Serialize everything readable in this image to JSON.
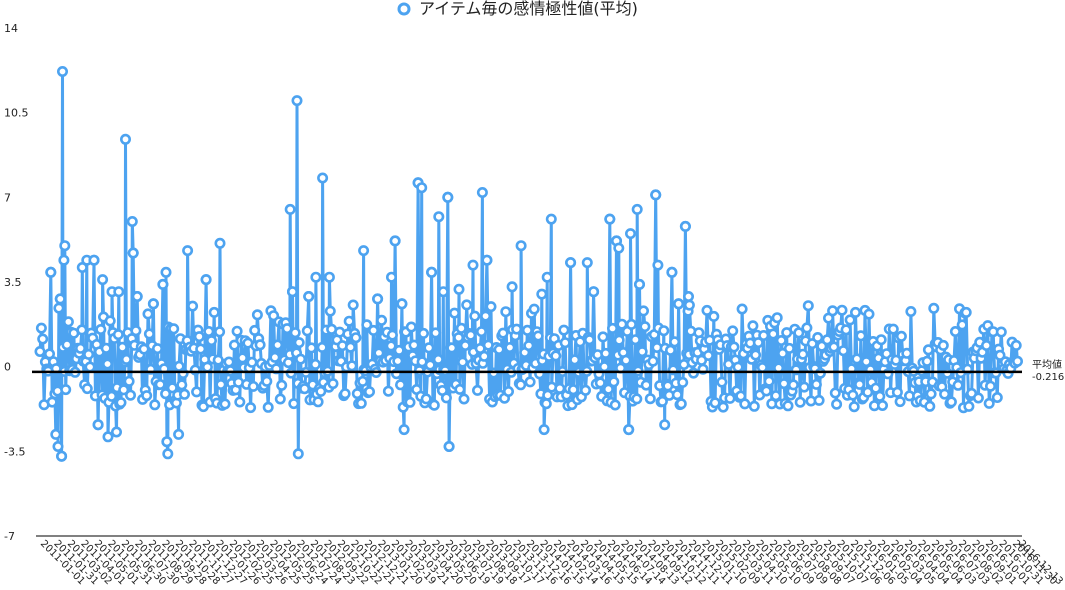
{
  "chart_data": {
    "type": "line",
    "title": "アイテム毎の感情極性値(平均)",
    "colors": {
      "series": "#4da3f0",
      "mean": "#000000",
      "axis": "#000000"
    },
    "ylim": [
      -7,
      14
    ],
    "yticks": [
      -7,
      -3.5,
      0,
      3.5,
      7,
      10.5,
      14
    ],
    "ytick_labels": [
      "-7",
      "-3.5",
      "0",
      "3.5",
      "7",
      "10.5",
      "14"
    ],
    "x_tick_labels": [
      "2011-01-01",
      "2011-01-31",
      "2011-03-02",
      "2011-04-01",
      "2011-05-01",
      "2011-05-31",
      "2011-06-30",
      "2011-07-30",
      "2011-08-29",
      "2011-09-28",
      "2011-10-28",
      "2011-11-27",
      "2011-12-27",
      "2012-01-26",
      "2012-02-25",
      "2012-03-26",
      "2012-04-25",
      "2012-05-25",
      "2012-06-24",
      "2012-07-24",
      "2012-08-23",
      "2012-09-22",
      "2012-10-22",
      "2012-11-21",
      "2012-12-21",
      "2013-01-20",
      "2013-02-19",
      "2013-03-21",
      "2013-04-20",
      "2013-05-20",
      "2013-06-19",
      "2013-07-19",
      "2013-08-18",
      "2013-09-17",
      "2013-10-17",
      "2013-11-16",
      "2013-12-16",
      "2014-01-15",
      "2014-02-14",
      "2014-03-16",
      "2014-04-15",
      "2014-05-15",
      "2014-06-14",
      "2014-07-14",
      "2014-08-13",
      "2014-09-12",
      "2014-10-12",
      "2014-11-11",
      "2014-12-11",
      "2015-01-10",
      "2015-02-09",
      "2015-03-11",
      "2015-04-10",
      "2015-05-10",
      "2015-06-09",
      "2015-07-09",
      "2015-08-08",
      "2015-09-07",
      "2015-10-07",
      "2015-11-06",
      "2015-12-06",
      "2016-01-05",
      "2016-02-04",
      "2016-03-05",
      "2016-04-04",
      "2016-05-04",
      "2016-06-03",
      "2016-07-03",
      "2016-08-02",
      "2016-09-01",
      "2016-10-01",
      "2016-10-31",
      "2016-11-30",
      "2016-12-13"
    ],
    "mean": {
      "value": -0.216,
      "label": "平均値",
      "value_label": "-0.216"
    },
    "series": [
      {
        "name": "アイテム毎の感情極性値(平均)",
        "peaks": [
          {
            "x": "2011-01-25",
            "y": 3.9
          },
          {
            "x": "2011-02-20",
            "y": 12.2
          },
          {
            "x": "2011-02-23",
            "y": 4.4
          },
          {
            "x": "2011-02-25",
            "y": 5.0
          },
          {
            "x": "2011-02-15",
            "y": 2.8
          },
          {
            "x": "2011-02-18",
            "y": 3.7
          },
          {
            "x": "2011-04-05",
            "y": 4.1
          },
          {
            "x": "2011-04-15",
            "y": 4.4
          },
          {
            "x": "2011-05-01",
            "y": 4.4
          },
          {
            "x": "2011-05-20",
            "y": 3.6
          },
          {
            "x": "2011-06-10",
            "y": 3.1
          },
          {
            "x": "2011-06-25",
            "y": 3.1
          },
          {
            "x": "2011-07-10",
            "y": 9.4
          },
          {
            "x": "2011-07-25",
            "y": 6.0
          },
          {
            "x": "2011-07-27",
            "y": 4.7
          },
          {
            "x": "2011-08-05",
            "y": 2.9
          },
          {
            "x": "2011-09-10",
            "y": 2.6
          },
          {
            "x": "2011-10-01",
            "y": 3.4
          },
          {
            "x": "2011-10-08",
            "y": 3.9
          },
          {
            "x": "2011-11-25",
            "y": 4.8
          },
          {
            "x": "2012-01-05",
            "y": 3.6
          },
          {
            "x": "2012-02-05",
            "y": 5.1
          },
          {
            "x": "2012-07-10",
            "y": 6.5
          },
          {
            "x": "2012-07-15",
            "y": 3.1
          },
          {
            "x": "2012-07-25",
            "y": 11.0
          },
          {
            "x": "2012-08-20",
            "y": 2.9
          },
          {
            "x": "2012-09-05",
            "y": 3.7
          },
          {
            "x": "2012-09-20",
            "y": 7.8
          },
          {
            "x": "2012-10-05",
            "y": 3.7
          },
          {
            "x": "2012-12-20",
            "y": 4.8
          },
          {
            "x": "2013-01-20",
            "y": 2.8
          },
          {
            "x": "2013-02-20",
            "y": 3.7
          },
          {
            "x": "2013-02-28",
            "y": 5.2
          },
          {
            "x": "2013-03-15",
            "y": 2.6
          },
          {
            "x": "2013-04-20",
            "y": 7.6
          },
          {
            "x": "2013-04-28",
            "y": 7.4
          },
          {
            "x": "2013-05-20",
            "y": 3.9
          },
          {
            "x": "2013-06-05",
            "y": 6.2
          },
          {
            "x": "2013-06-15",
            "y": 3.1
          },
          {
            "x": "2013-06-25",
            "y": 7.0
          },
          {
            "x": "2013-07-20",
            "y": 3.2
          },
          {
            "x": "2013-08-20",
            "y": 4.2
          },
          {
            "x": "2013-09-10",
            "y": 7.2
          },
          {
            "x": "2013-09-20",
            "y": 4.4
          },
          {
            "x": "2013-11-15",
            "y": 3.3
          },
          {
            "x": "2013-12-05",
            "y": 5.0
          },
          {
            "x": "2014-01-20",
            "y": 3.0
          },
          {
            "x": "2014-02-01",
            "y": 3.7
          },
          {
            "x": "2014-02-10",
            "y": 6.1
          },
          {
            "x": "2014-03-25",
            "y": 4.3
          },
          {
            "x": "2014-05-01",
            "y": 4.3
          },
          {
            "x": "2014-05-15",
            "y": 3.1
          },
          {
            "x": "2014-06-20",
            "y": 6.1
          },
          {
            "x": "2014-07-05",
            "y": 5.2
          },
          {
            "x": "2014-07-10",
            "y": 4.9
          },
          {
            "x": "2014-08-05",
            "y": 5.5
          },
          {
            "x": "2014-08-20",
            "y": 6.5
          },
          {
            "x": "2014-08-25",
            "y": 3.4
          },
          {
            "x": "2014-09-30",
            "y": 7.1
          },
          {
            "x": "2014-10-05",
            "y": 4.2
          },
          {
            "x": "2014-11-05",
            "y": 3.9
          },
          {
            "x": "2014-11-20",
            "y": 2.6
          },
          {
            "x": "2014-12-05",
            "y": 5.8
          },
          {
            "x": "2014-12-12",
            "y": 2.9
          },
          {
            "x": "2014-12-13",
            "y": 0.5
          }
        ],
        "troughs": [
          {
            "x": "2011-02-10",
            "y": -3.3
          },
          {
            "x": "2011-02-18",
            "y": -3.7
          },
          {
            "x": "2011-02-05",
            "y": -2.8
          },
          {
            "x": "2011-05-10",
            "y": -2.4
          },
          {
            "x": "2011-06-01",
            "y": -2.9
          },
          {
            "x": "2011-06-20",
            "y": -2.7
          },
          {
            "x": "2011-10-10",
            "y": -3.1
          },
          {
            "x": "2011-10-12",
            "y": -3.6
          },
          {
            "x": "2011-11-05",
            "y": -2.8
          },
          {
            "x": "2012-07-28",
            "y": -3.6
          },
          {
            "x": "2013-06-28",
            "y": -3.3
          },
          {
            "x": "2013-03-20",
            "y": -2.6
          },
          {
            "x": "2014-01-25",
            "y": -2.6
          },
          {
            "x": "2014-08-01",
            "y": -2.6
          },
          {
            "x": "2014-10-20",
            "y": -2.4
          }
        ]
      }
    ]
  }
}
